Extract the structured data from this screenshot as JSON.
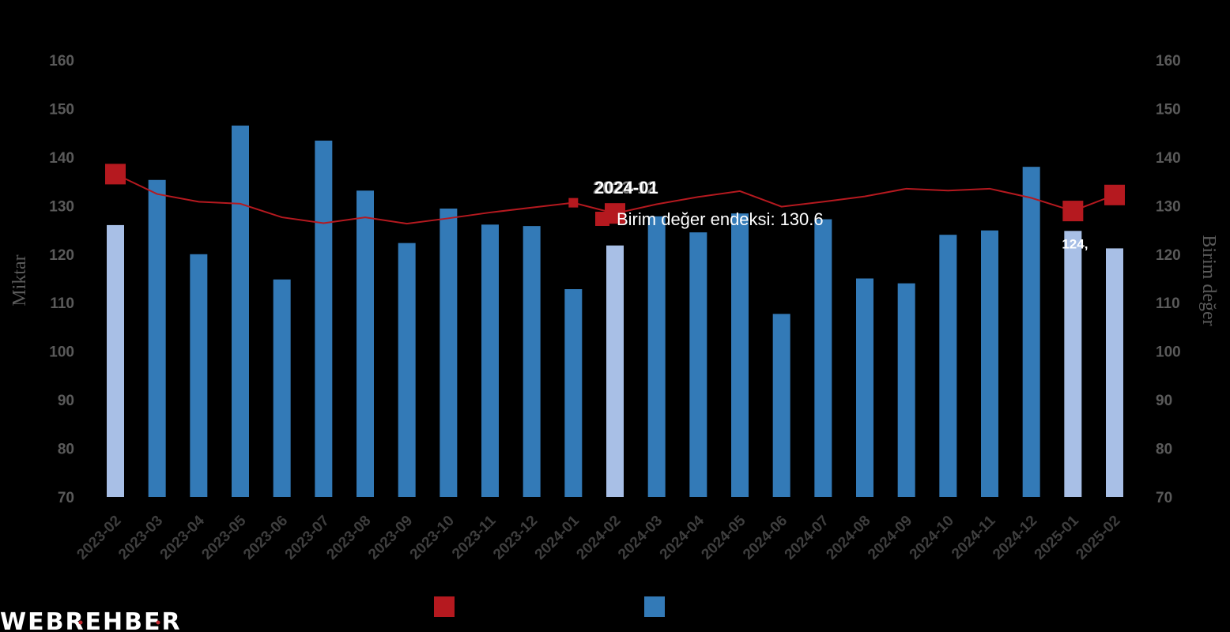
{
  "brand": {
    "logo_text": "WEBREHBER",
    "dot_color": "#c0272d"
  },
  "chart_data": {
    "type": "bar+line",
    "categories": [
      "2023-02",
      "2023-03",
      "2023-04",
      "2023-05",
      "2023-06",
      "2023-07",
      "2023-08",
      "2023-09",
      "2023-10",
      "2023-11",
      "2023-12",
      "2024-01",
      "2024-02",
      "2024-03",
      "2024-04",
      "2024-05",
      "2024-06",
      "2024-07",
      "2024-08",
      "2024-09",
      "2024-10",
      "2024-11",
      "2024-12",
      "2025-01",
      "2025-02"
    ],
    "yleft": {
      "label": "Miktar",
      "min": 70,
      "max": 160,
      "step": 10
    },
    "yright": {
      "label": "Birim değer",
      "min": 70,
      "max": 160,
      "step": 10
    },
    "bar_series": {
      "name": "",
      "color": "#337ab7",
      "light_color": "#a8bfe6",
      "legend_color": "#337ab7",
      "values": [
        126,
        135.3,
        120,
        146.5,
        114.8,
        143.4,
        133.1,
        122.3,
        129.4,
        126.1,
        125.8,
        112.8,
        121.8,
        127.8,
        124.5,
        128.4,
        107.7,
        127.2,
        115,
        114,
        124,
        124.9,
        138,
        124.8,
        121.2
      ],
      "highlight_indices": [
        0,
        12,
        23,
        24
      ]
    },
    "line_series": {
      "name": "Birim değer endeksi",
      "color": "#b5191f",
      "legend_color": "#b5191f",
      "values": [
        136.5,
        132.4,
        130.8,
        130.4,
        127.6,
        126.4,
        127.6,
        126.3,
        127.4,
        128.6,
        129.6,
        130.6,
        128.4,
        130.3,
        131.8,
        133,
        129.8,
        130.8,
        131.9,
        133.5,
        133.1,
        133.5,
        131.6,
        128.9,
        132.2
      ],
      "big_marker_indices": [
        0,
        12,
        23,
        24
      ],
      "hover_marker_index": 11
    },
    "tooltip": {
      "title": "2024-01",
      "title_ghost": "2023-12",
      "series_label": "Birim değer endeksi",
      "separator": ":",
      "value": "130.6"
    },
    "data_labels": [
      {
        "index": 23,
        "text": "124,"
      }
    ],
    "grid": false,
    "legend_placement": "bottom-center"
  }
}
